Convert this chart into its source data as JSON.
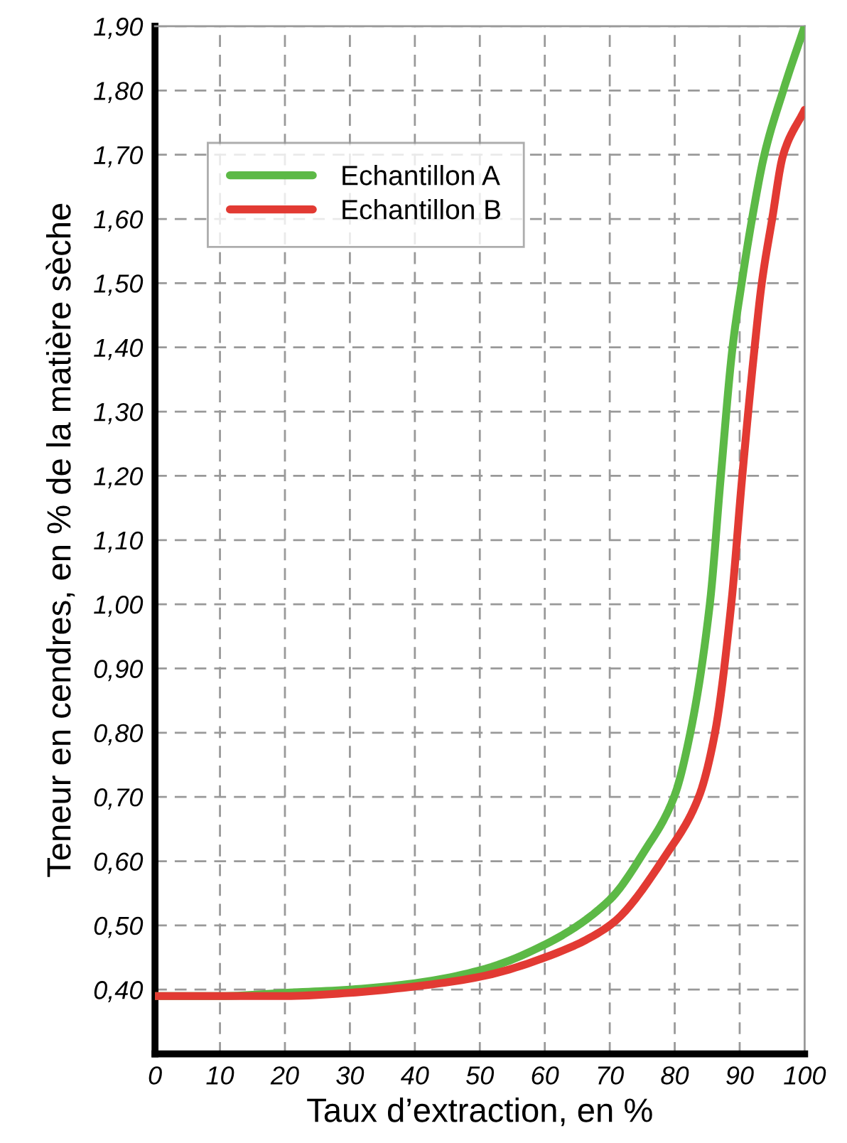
{
  "chart_data": {
    "type": "line",
    "xlabel": "Taux d’extraction, en %",
    "ylabel": "Teneur en cendres, en % de la matière sèche",
    "xlim": [
      0,
      100
    ],
    "xticks": [
      0,
      10,
      20,
      30,
      40,
      50,
      60,
      70,
      80,
      90,
      100
    ],
    "ylim": [
      0.3,
      1.9
    ],
    "yticks": [
      {
        "value": 0.4,
        "label": "0,40"
      },
      {
        "value": 0.5,
        "label": "0,50"
      },
      {
        "value": 0.6,
        "label": "0,60"
      },
      {
        "value": 0.7,
        "label": "0,70"
      },
      {
        "value": 0.8,
        "label": "0,80"
      },
      {
        "value": 0.9,
        "label": "0,90"
      },
      {
        "value": 1.0,
        "label": "1,00"
      },
      {
        "value": 1.1,
        "label": "1,10"
      },
      {
        "value": 1.2,
        "label": "1,20"
      },
      {
        "value": 1.3,
        "label": "1,30"
      },
      {
        "value": 1.4,
        "label": "1,40"
      },
      {
        "value": 1.5,
        "label": "1,50"
      },
      {
        "value": 1.6,
        "label": "1,60"
      },
      {
        "value": 1.7,
        "label": "1,70"
      },
      {
        "value": 1.8,
        "label": "1,80"
      },
      {
        "value": 1.9,
        "label": "1,90"
      }
    ],
    "grid": true,
    "legend": "top left",
    "marker": "none",
    "line_style": "solid",
    "series": [
      {
        "name": "Echantillon A",
        "color": "#5cb946",
        "x": [
          0,
          10,
          20,
          30,
          40,
          50,
          60,
          70,
          75.3,
          79.9,
          82.4,
          85.4,
          87.1,
          88.9,
          90.3,
          91.9,
          93.8,
          96.7,
          100
        ],
        "values": [
          0.39,
          0.39,
          0.395,
          0.4,
          0.41,
          0.43,
          0.47,
          0.54,
          0.615,
          0.7,
          0.8,
          1.0,
          1.2,
          1.4,
          1.5,
          1.6,
          1.7,
          1.8,
          1.9
        ]
      },
      {
        "name": "Echantillon B",
        "color": "#e23a33",
        "x": [
          0,
          10,
          20,
          30,
          40,
          50,
          60,
          70,
          79.0,
          83.7,
          86.2,
          88.7,
          90.4,
          92.3,
          93.4,
          95.0,
          96.7,
          100
        ],
        "values": [
          0.39,
          0.39,
          0.39,
          0.395,
          0.405,
          0.42,
          0.45,
          0.5,
          0.615,
          0.7,
          0.8,
          1.0,
          1.2,
          1.4,
          1.5,
          1.6,
          1.7,
          1.77
        ]
      }
    ]
  }
}
